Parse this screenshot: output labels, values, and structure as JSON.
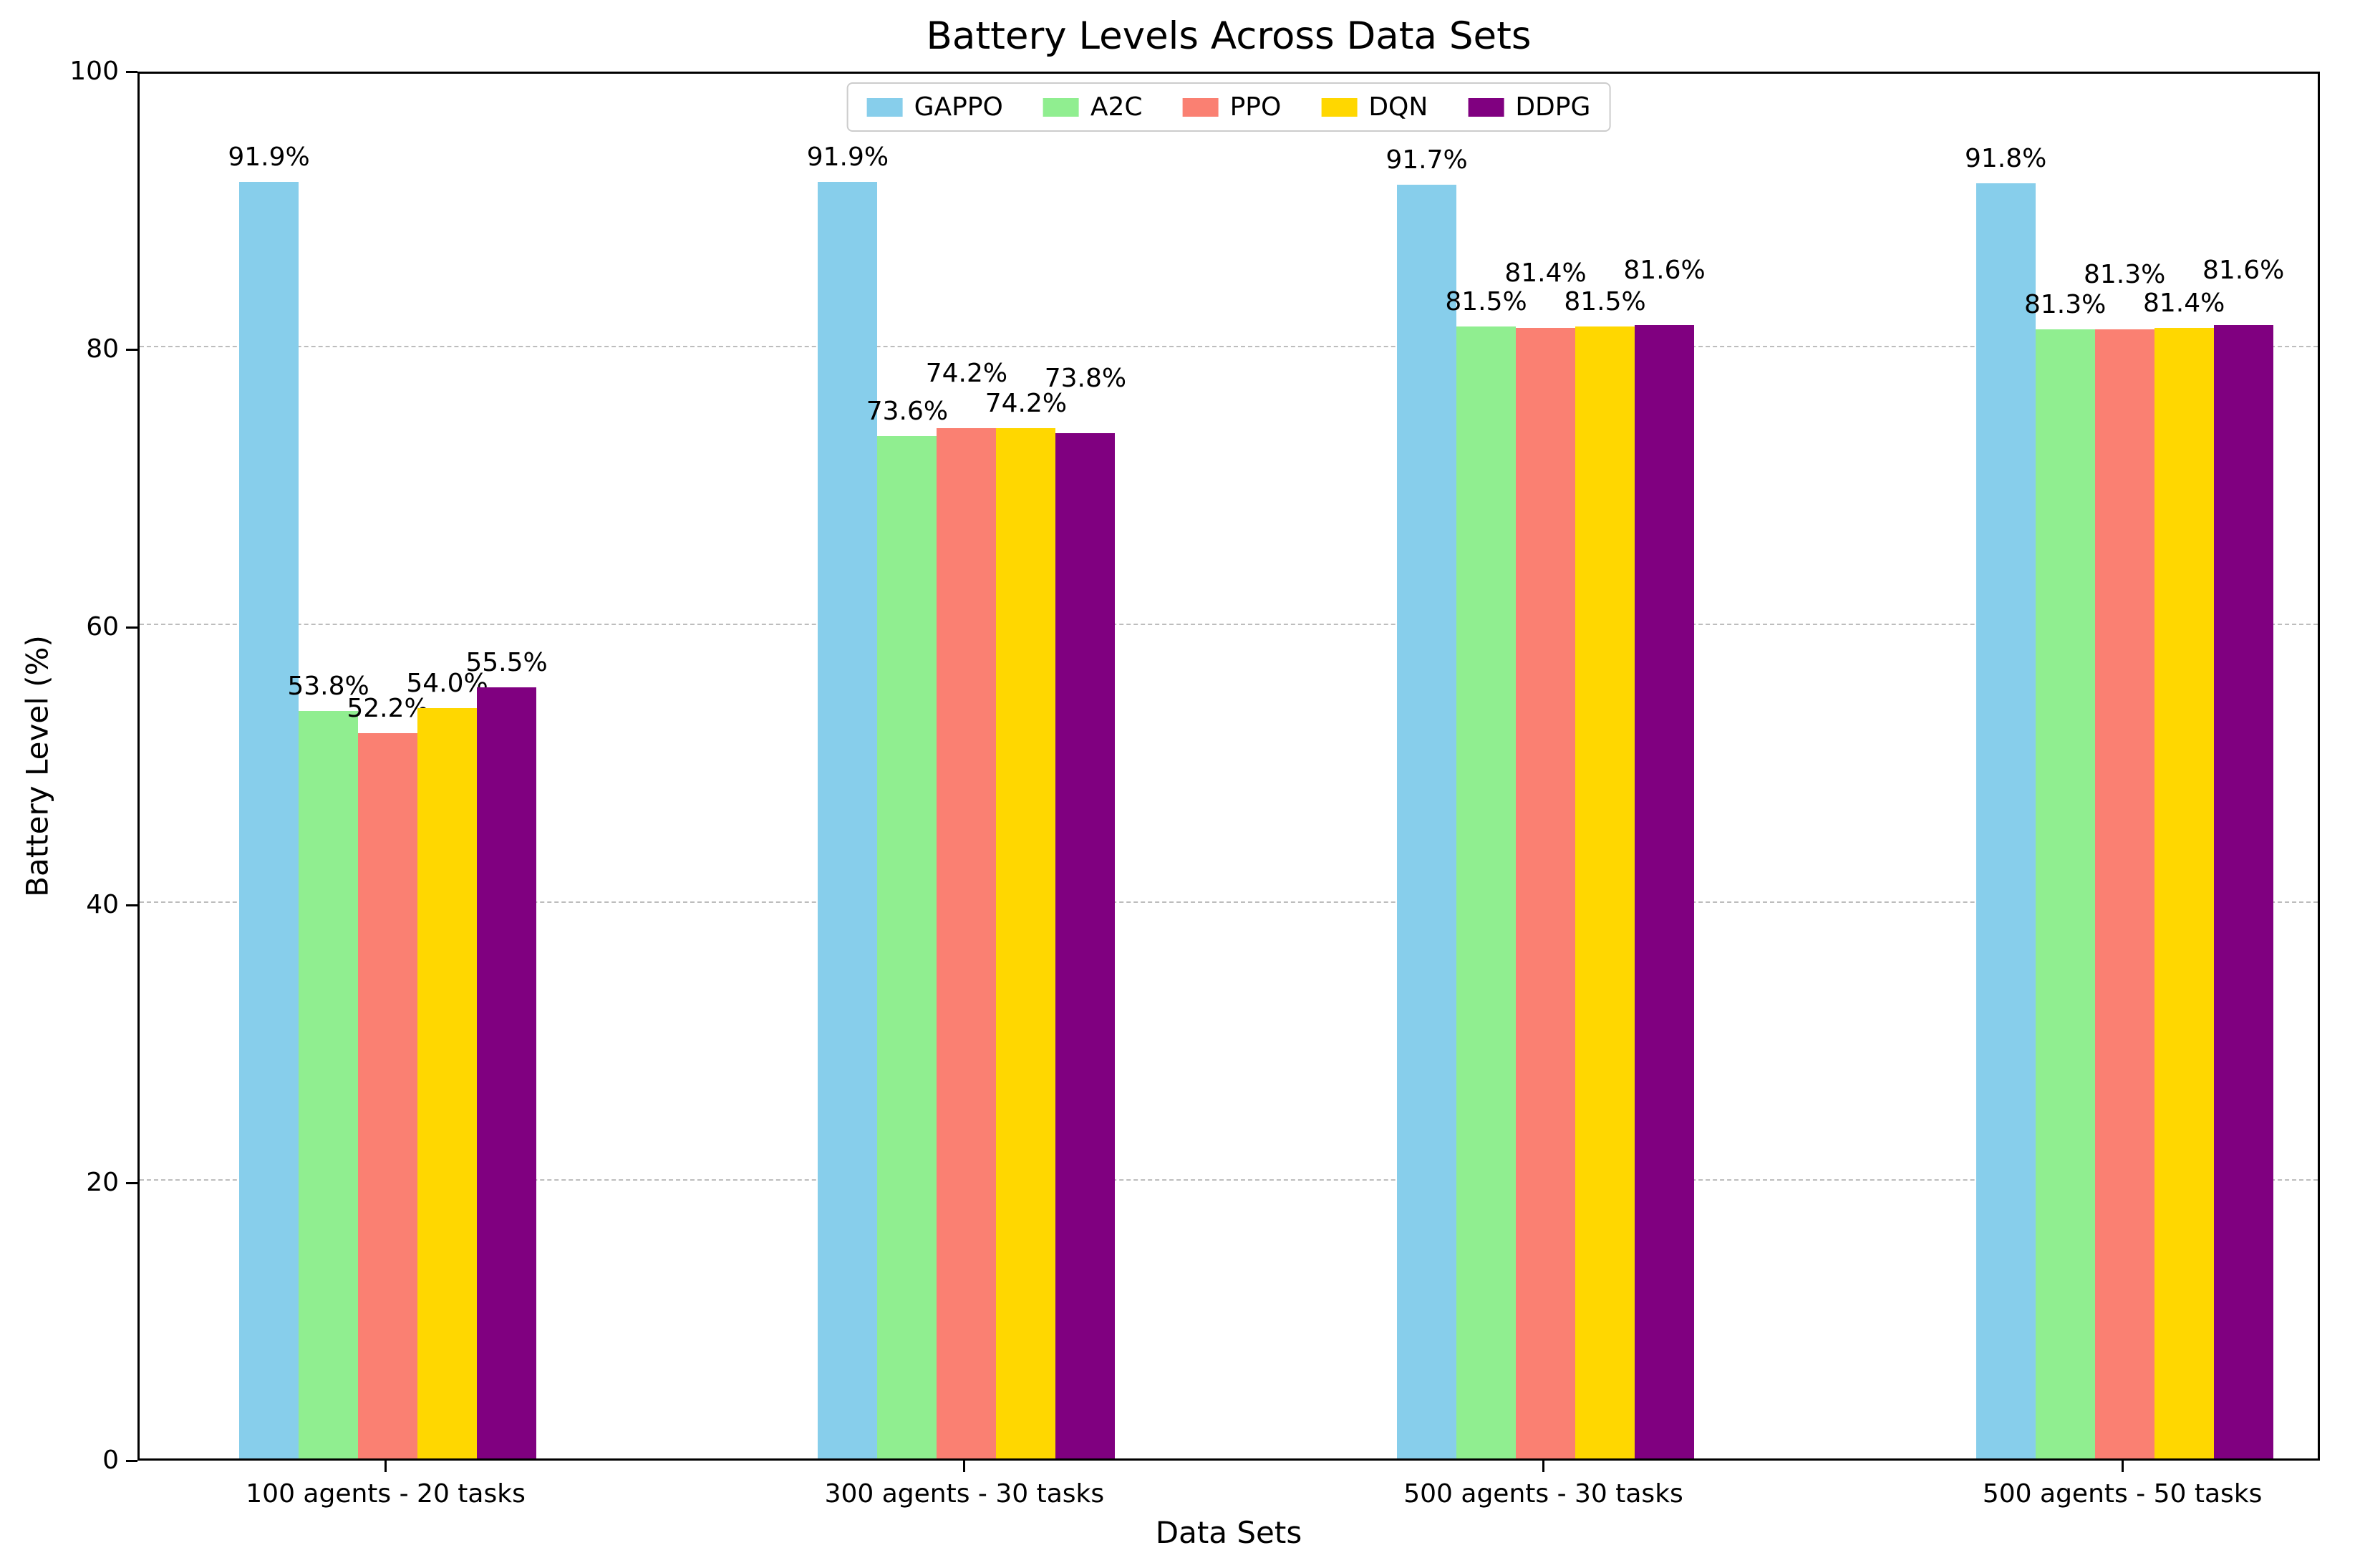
{
  "chart_data": {
    "type": "bar",
    "title": "Battery Levels Across Data Sets",
    "xlabel": "Data Sets",
    "ylabel": "Battery Level (%)",
    "ylim": [
      0,
      100
    ],
    "yticks": [
      0,
      20,
      40,
      60,
      80,
      100
    ],
    "grid": true,
    "legend_position": "upper center",
    "value_suffix": "%",
    "categories": [
      "100 agents - 20 tasks",
      "300 agents - 30 tasks",
      "500 agents - 30 tasks",
      "500 agents - 50 tasks"
    ],
    "series": [
      {
        "name": "GAPPO",
        "color": "#87CEEB",
        "values": [
          91.9,
          91.9,
          91.7,
          91.8
        ]
      },
      {
        "name": "A2C",
        "color": "#90EE90",
        "values": [
          53.8,
          73.6,
          81.5,
          81.3
        ]
      },
      {
        "name": "PPO",
        "color": "#FA8072",
        "values": [
          52.2,
          74.2,
          81.4,
          81.3
        ]
      },
      {
        "name": "DQN",
        "color": "#FFD700",
        "values": [
          54.0,
          74.2,
          81.5,
          81.4
        ]
      },
      {
        "name": "DDPG",
        "color": "#800080",
        "values": [
          55.5,
          73.8,
          81.6,
          81.6
        ]
      }
    ]
  }
}
